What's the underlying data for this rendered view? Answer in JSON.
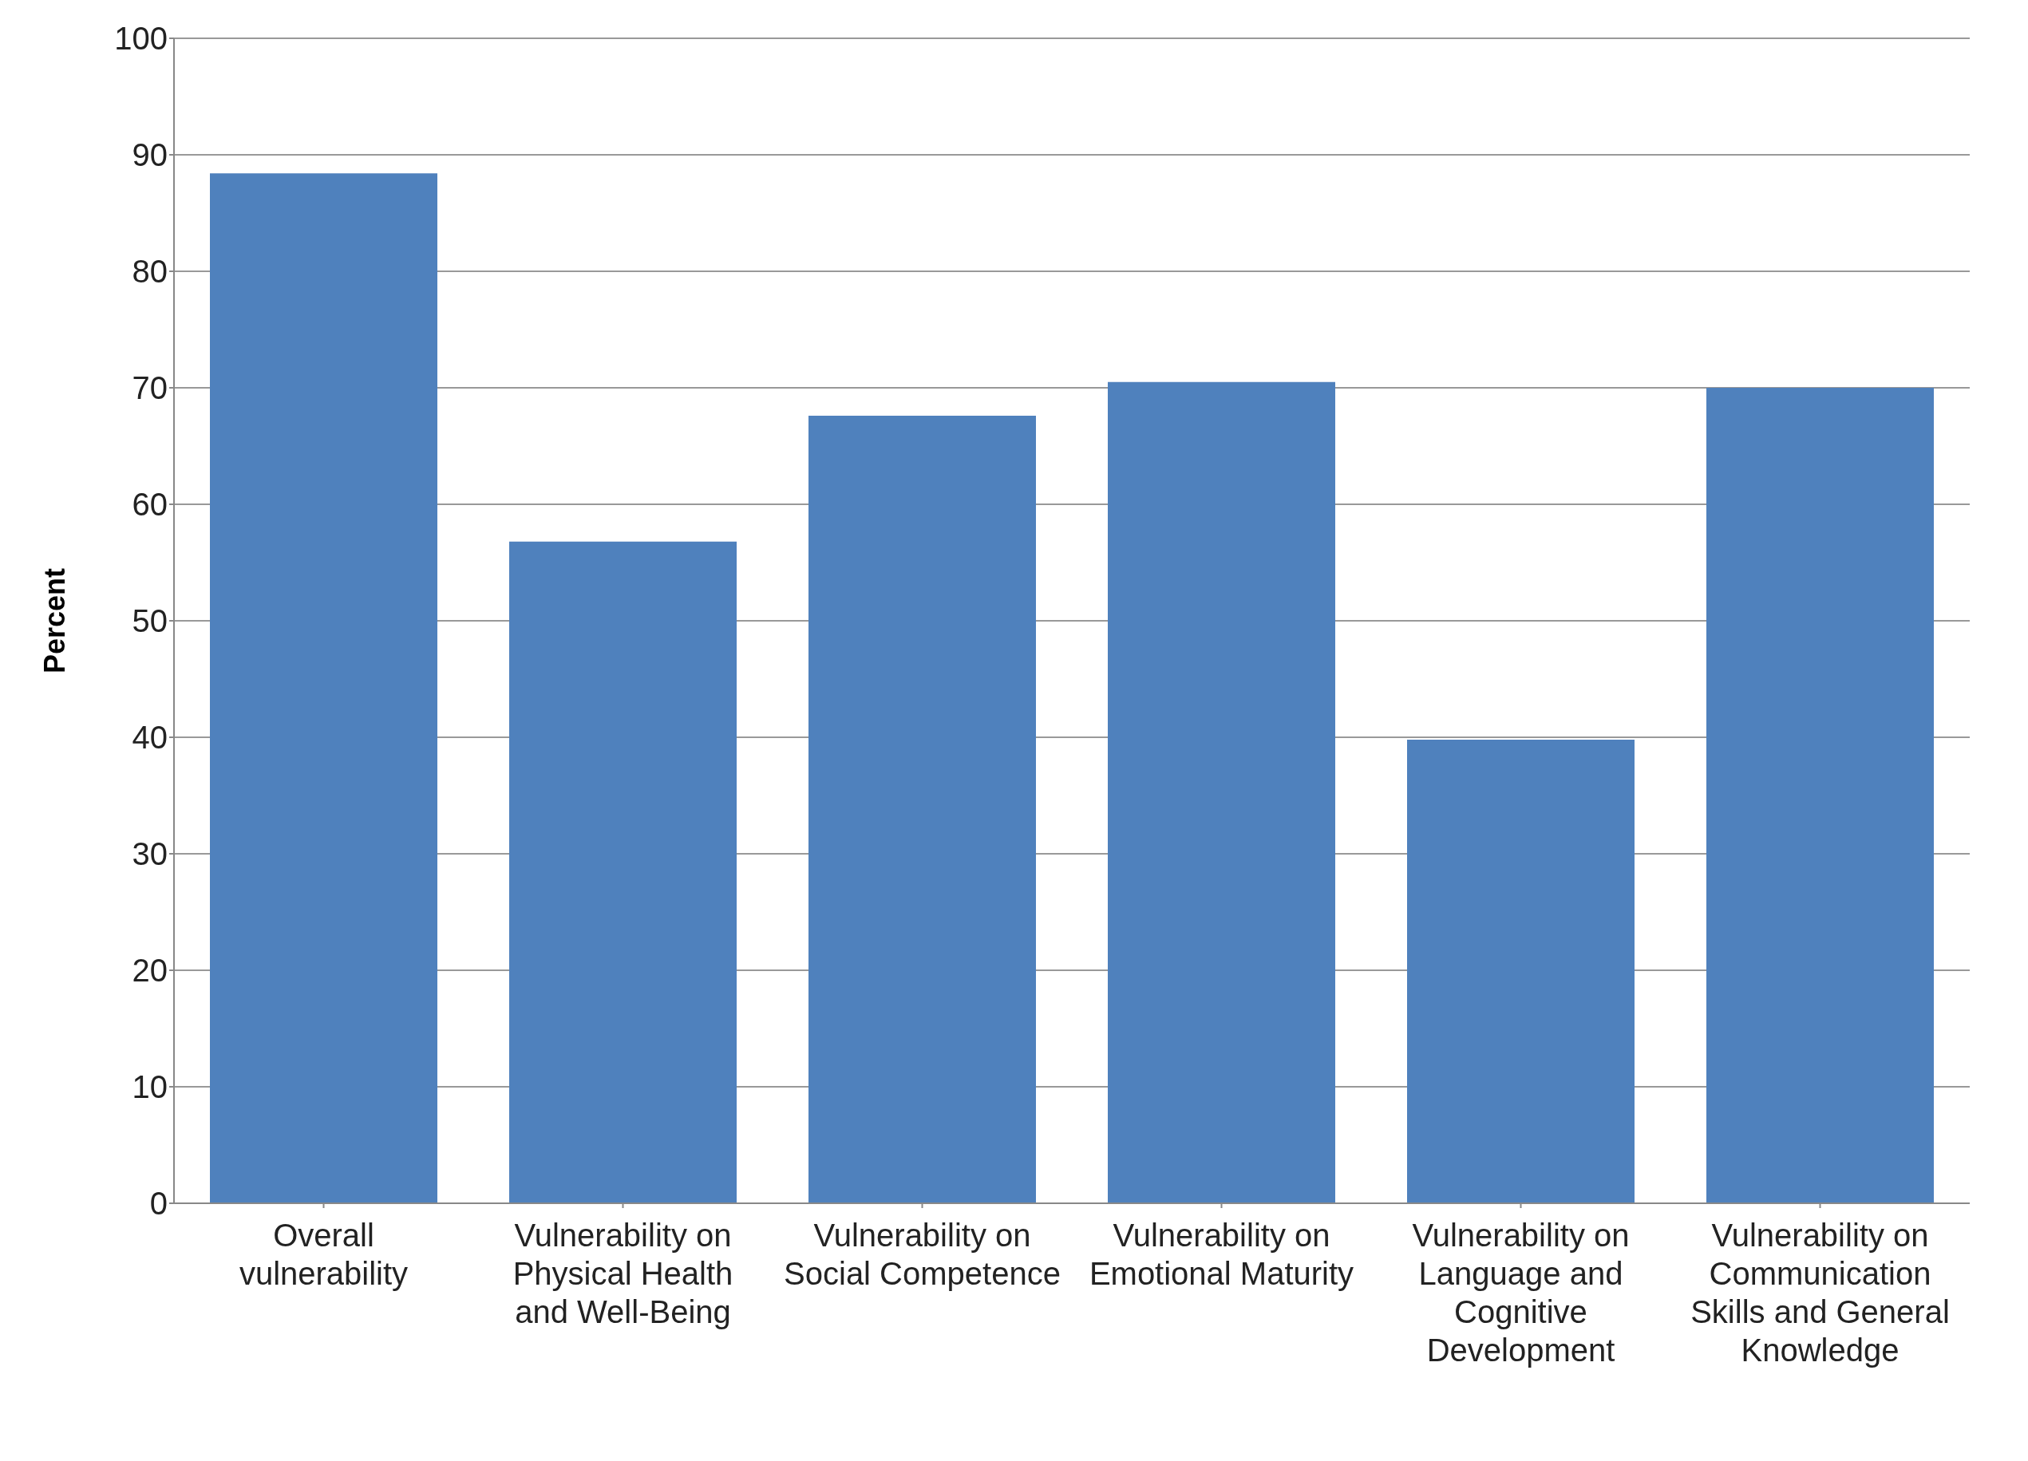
{
  "chart_data": {
    "type": "bar",
    "ylabel": "Percent",
    "categories": [
      "Overall vulnerability",
      "Vulnerability on Physical Health and Well-Being",
      "Vulnerability on Social Competence",
      "Vulnerability on Emotional Maturity",
      "Vulnerability on Language and Cognitive Development",
      "Vulnerability on Communication Skills and General Knowledge"
    ],
    "values": [
      88.4,
      56.8,
      67.6,
      70.5,
      39.8,
      70.0
    ],
    "color": "#4f81bd",
    "ylim": [
      0,
      100
    ],
    "yticks": [
      0,
      10,
      20,
      30,
      40,
      50,
      60,
      70,
      80,
      90,
      100
    ],
    "grid": "y",
    "legend": false
  }
}
